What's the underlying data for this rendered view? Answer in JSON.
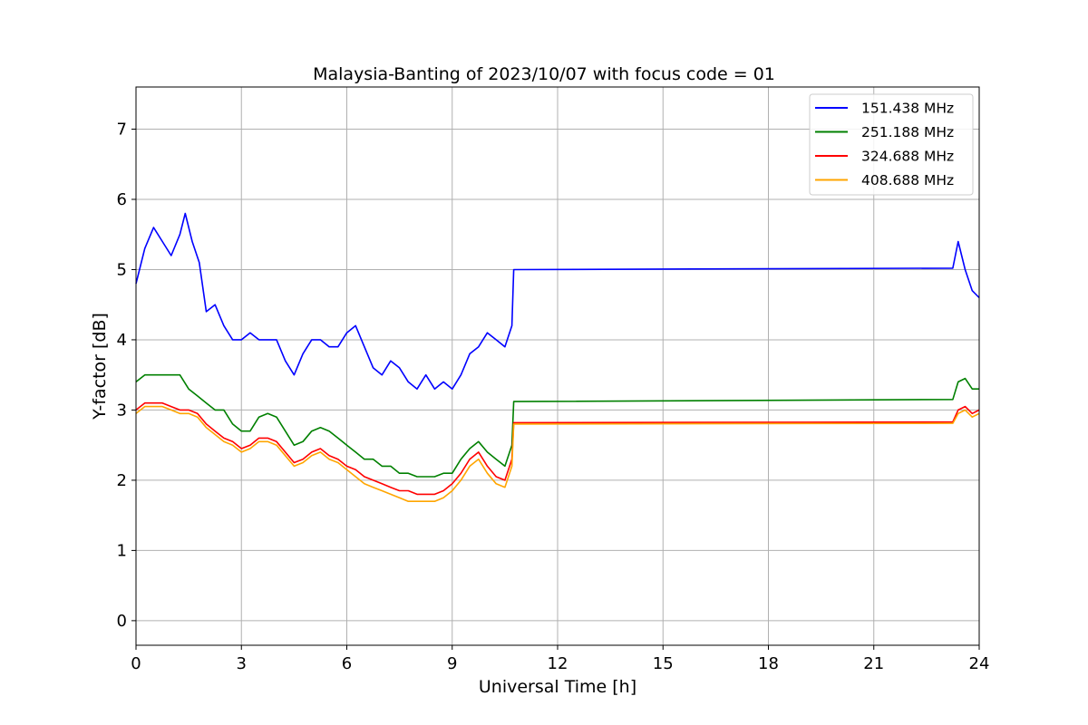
{
  "chart_data": {
    "type": "line",
    "title": "Malaysia-Banting of 2023/10/07 with focus code = 01",
    "xlabel": "Universal Time [h]",
    "ylabel": "Y-factor [dB]",
    "xlim": [
      0,
      24
    ],
    "ylim": [
      -0.35,
      7.6
    ],
    "xticks": [
      0,
      3,
      6,
      9,
      12,
      15,
      18,
      21,
      24
    ],
    "yticks": [
      0,
      1,
      2,
      3,
      4,
      5,
      6,
      7
    ],
    "grid": true,
    "legend_position": "top-right",
    "series": [
      {
        "name": "151.438 MHz",
        "color": "#0000ff",
        "x": [
          0,
          0.25,
          0.5,
          0.75,
          1.0,
          1.25,
          1.4,
          1.6,
          1.8,
          2.0,
          2.25,
          2.5,
          2.75,
          3.0,
          3.25,
          3.5,
          3.75,
          4.0,
          4.25,
          4.5,
          4.75,
          5.0,
          5.25,
          5.5,
          5.75,
          6.0,
          6.25,
          6.5,
          6.75,
          7.0,
          7.25,
          7.5,
          7.75,
          8.0,
          8.25,
          8.5,
          8.75,
          9.0,
          9.25,
          9.5,
          9.75,
          10.0,
          10.25,
          10.5,
          10.7,
          10.75,
          23.25,
          23.4,
          23.6,
          23.8,
          24.0
        ],
        "y": [
          4.8,
          5.3,
          5.6,
          5.4,
          5.2,
          5.5,
          5.8,
          5.4,
          5.1,
          4.4,
          4.5,
          4.2,
          4.0,
          4.0,
          4.1,
          4.0,
          4.0,
          4.0,
          3.7,
          3.5,
          3.8,
          4.0,
          4.0,
          3.9,
          3.9,
          4.1,
          4.2,
          3.9,
          3.6,
          3.5,
          3.7,
          3.6,
          3.4,
          3.3,
          3.5,
          3.3,
          3.4,
          3.3,
          3.5,
          3.8,
          3.9,
          4.1,
          4.0,
          3.9,
          4.2,
          5.0,
          5.02,
          5.4,
          5.0,
          4.7,
          4.6
        ]
      },
      {
        "name": "251.188 MHz",
        "color": "#008000",
        "x": [
          0,
          0.25,
          0.5,
          0.75,
          1.0,
          1.25,
          1.5,
          1.75,
          2.0,
          2.25,
          2.5,
          2.75,
          3.0,
          3.25,
          3.5,
          3.75,
          4.0,
          4.25,
          4.5,
          4.75,
          5.0,
          5.25,
          5.5,
          5.75,
          6.0,
          6.25,
          6.5,
          6.75,
          7.0,
          7.25,
          7.5,
          7.75,
          8.0,
          8.25,
          8.5,
          8.75,
          9.0,
          9.25,
          9.5,
          9.75,
          10.0,
          10.25,
          10.5,
          10.7,
          10.75,
          23.25,
          23.4,
          23.6,
          23.8,
          24.0
        ],
        "y": [
          3.4,
          3.5,
          3.5,
          3.5,
          3.5,
          3.5,
          3.3,
          3.2,
          3.1,
          3.0,
          3.0,
          2.8,
          2.7,
          2.7,
          2.9,
          2.95,
          2.9,
          2.7,
          2.5,
          2.55,
          2.7,
          2.75,
          2.7,
          2.6,
          2.5,
          2.4,
          2.3,
          2.3,
          2.2,
          2.2,
          2.1,
          2.1,
          2.05,
          2.05,
          2.05,
          2.1,
          2.1,
          2.3,
          2.45,
          2.55,
          2.4,
          2.3,
          2.2,
          2.5,
          3.12,
          3.15,
          3.4,
          3.45,
          3.3,
          3.3
        ]
      },
      {
        "name": "324.688 MHz",
        "color": "#ff0000",
        "x": [
          0,
          0.25,
          0.5,
          0.75,
          1.0,
          1.25,
          1.5,
          1.75,
          2.0,
          2.25,
          2.5,
          2.75,
          3.0,
          3.25,
          3.5,
          3.75,
          4.0,
          4.25,
          4.5,
          4.75,
          5.0,
          5.25,
          5.5,
          5.75,
          6.0,
          6.25,
          6.5,
          6.75,
          7.0,
          7.25,
          7.5,
          7.75,
          8.0,
          8.25,
          8.5,
          8.75,
          9.0,
          9.25,
          9.5,
          9.75,
          10.0,
          10.25,
          10.5,
          10.7,
          10.75,
          23.25,
          23.4,
          23.6,
          23.8,
          24.0
        ],
        "y": [
          3.0,
          3.1,
          3.1,
          3.1,
          3.05,
          3.0,
          3.0,
          2.95,
          2.8,
          2.7,
          2.6,
          2.55,
          2.45,
          2.5,
          2.6,
          2.6,
          2.55,
          2.4,
          2.25,
          2.3,
          2.4,
          2.45,
          2.35,
          2.3,
          2.2,
          2.15,
          2.05,
          2.0,
          1.95,
          1.9,
          1.85,
          1.85,
          1.8,
          1.8,
          1.8,
          1.85,
          1.95,
          2.1,
          2.3,
          2.4,
          2.2,
          2.05,
          2.0,
          2.3,
          2.82,
          2.83,
          3.0,
          3.05,
          2.95,
          3.0
        ]
      },
      {
        "name": "408.688 MHz",
        "color": "#ffa500",
        "x": [
          0,
          0.25,
          0.5,
          0.75,
          1.0,
          1.25,
          1.5,
          1.75,
          2.0,
          2.25,
          2.5,
          2.75,
          3.0,
          3.25,
          3.5,
          3.75,
          4.0,
          4.25,
          4.5,
          4.75,
          5.0,
          5.25,
          5.5,
          5.75,
          6.0,
          6.25,
          6.5,
          6.75,
          7.0,
          7.25,
          7.5,
          7.75,
          8.0,
          8.25,
          8.5,
          8.75,
          9.0,
          9.25,
          9.5,
          9.75,
          10.0,
          10.25,
          10.5,
          10.7,
          10.75,
          23.25,
          23.4,
          23.6,
          23.8,
          24.0
        ],
        "y": [
          2.95,
          3.05,
          3.05,
          3.05,
          3.0,
          2.95,
          2.95,
          2.9,
          2.75,
          2.65,
          2.55,
          2.5,
          2.4,
          2.45,
          2.55,
          2.55,
          2.5,
          2.35,
          2.2,
          2.25,
          2.35,
          2.4,
          2.3,
          2.25,
          2.15,
          2.05,
          1.95,
          1.9,
          1.85,
          1.8,
          1.75,
          1.7,
          1.7,
          1.7,
          1.7,
          1.75,
          1.85,
          2.0,
          2.2,
          2.3,
          2.1,
          1.95,
          1.9,
          2.2,
          2.8,
          2.81,
          2.95,
          3.0,
          2.9,
          2.95
        ]
      }
    ]
  }
}
